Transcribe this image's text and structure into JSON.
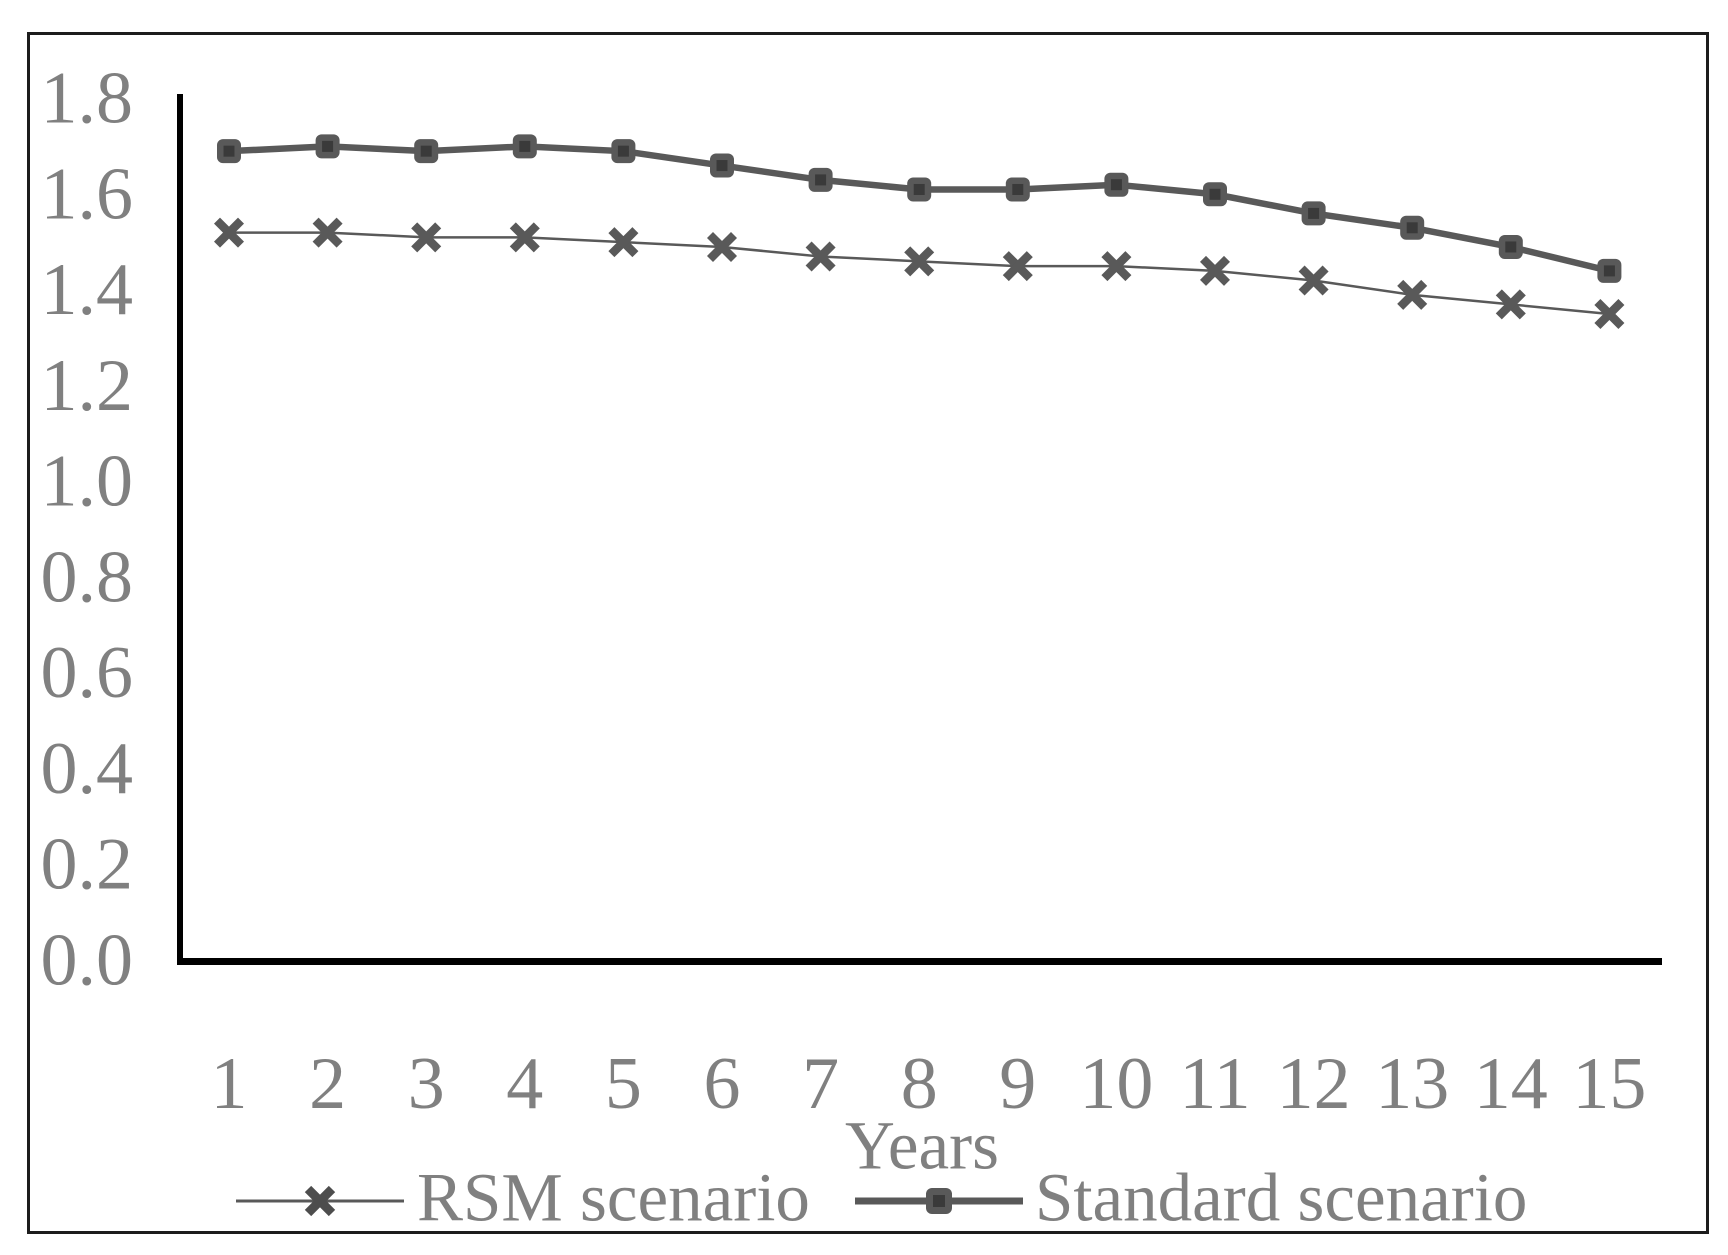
{
  "chart_data": {
    "type": "line",
    "title": "",
    "xlabel": "Years",
    "ylabel": "",
    "x": [
      1,
      2,
      3,
      4,
      5,
      6,
      7,
      8,
      9,
      10,
      11,
      12,
      13,
      14,
      15
    ],
    "series": [
      {
        "name": "RSM scenario",
        "marker": "x",
        "line_weight": "thin",
        "values": [
          1.52,
          1.52,
          1.51,
          1.51,
          1.5,
          1.49,
          1.47,
          1.46,
          1.45,
          1.45,
          1.44,
          1.42,
          1.39,
          1.37,
          1.35
        ]
      },
      {
        "name": "Standard scenario",
        "marker": "square",
        "line_weight": "thick",
        "values": [
          1.69,
          1.7,
          1.69,
          1.7,
          1.69,
          1.66,
          1.63,
          1.61,
          1.61,
          1.62,
          1.6,
          1.56,
          1.53,
          1.49,
          1.44
        ]
      }
    ],
    "ylim": [
      0.0,
      1.8
    ],
    "ytick_step": 0.2,
    "yticks": [
      "1.8",
      "1.6",
      "1.4",
      "1.2",
      "1.0",
      "0.8",
      "0.6",
      "0.4",
      "0.2",
      "0.0"
    ],
    "grid": false,
    "legend_position": "bottom",
    "colors": {
      "series": "#595959",
      "marker_inner": "#3a3a3a",
      "tick_text": "#808080",
      "axis": "#000000",
      "frame": "#1d1d1d",
      "background": "#ffffff"
    }
  }
}
